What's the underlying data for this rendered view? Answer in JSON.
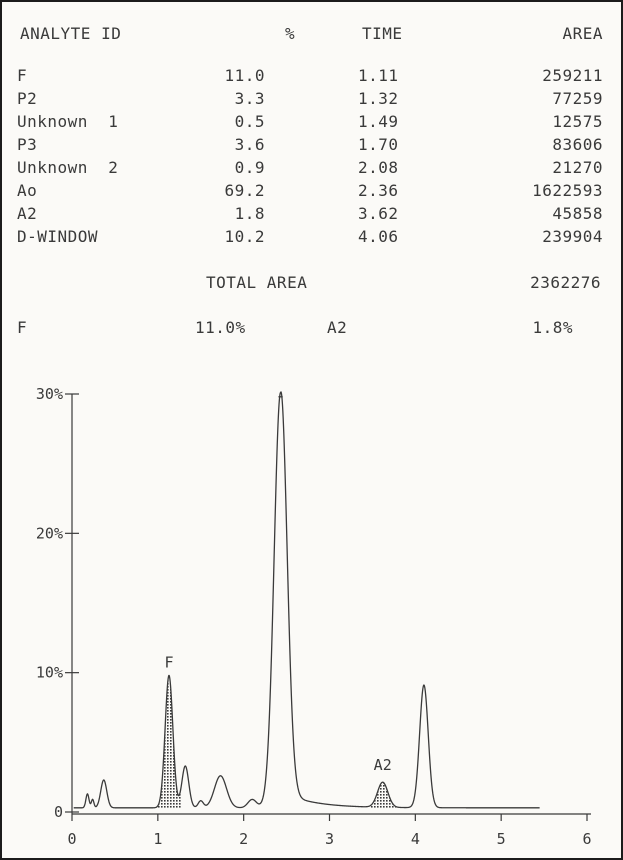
{
  "table": {
    "headers": {
      "analyte": "ANALYTE ID",
      "percent": "%",
      "time": "TIME",
      "area": "AREA"
    },
    "rows": [
      {
        "id": "F",
        "percent": "11.0",
        "time": "1.11",
        "area": "259211"
      },
      {
        "id": "P2",
        "percent": "3.3",
        "time": "1.32",
        "area": "77259"
      },
      {
        "id": "Unknown  1",
        "percent": "0.5",
        "time": "1.49",
        "area": "12575"
      },
      {
        "id": "P3",
        "percent": "3.6",
        "time": "1.70",
        "area": "83606"
      },
      {
        "id": "Unknown  2",
        "percent": "0.9",
        "time": "2.08",
        "area": "21270"
      },
      {
        "id": "Ao",
        "percent": "69.2",
        "time": "2.36",
        "area": "1622593"
      },
      {
        "id": "A2",
        "percent": "1.8",
        "time": "3.62",
        "area": "45858"
      },
      {
        "id": "D-WINDOW",
        "percent": "10.2",
        "time": "4.06",
        "area": "239904"
      }
    ]
  },
  "total": {
    "label": "TOTAL AREA",
    "value": "2362276"
  },
  "summary": {
    "f_label": "F",
    "f_value": "11.0%",
    "a2_label": "A2",
    "a2_value": "1.8%"
  },
  "colors": {
    "ink": "#3a3a3a",
    "paper": "#fbfaf7"
  },
  "chart_data": {
    "type": "line",
    "xlim": [
      0,
      6
    ],
    "ylim": [
      0,
      30
    ],
    "x_ticks": [
      "0",
      "1",
      "2",
      "3",
      "4",
      "5",
      "6"
    ],
    "y_ticks": [
      {
        "value": 0,
        "label": "0"
      },
      {
        "value": 10,
        "label": "10%"
      },
      {
        "value": 20,
        "label": "20%"
      },
      {
        "value": 30,
        "label": "30%"
      }
    ],
    "baseline": 0.3,
    "x_start": 0.02,
    "x_end": 5.45,
    "peaks": [
      {
        "x": 0.18,
        "height": 1.0,
        "width": 0.018
      },
      {
        "x": 0.24,
        "height": 0.6,
        "width": 0.015
      },
      {
        "x": 0.37,
        "height": 2.0,
        "width": 0.035
      },
      {
        "x": 1.13,
        "height": 9.5,
        "width": 0.045
      },
      {
        "x": 1.32,
        "height": 3.0,
        "width": 0.04
      },
      {
        "x": 1.5,
        "height": 0.5,
        "width": 0.03
      },
      {
        "x": 1.73,
        "height": 2.3,
        "width": 0.07
      },
      {
        "x": 2.1,
        "height": 0.6,
        "width": 0.05
      },
      {
        "x": 2.43,
        "height": 29.8,
        "width": 0.075
      },
      {
        "x": 3.62,
        "height": 1.8,
        "width": 0.06
      },
      {
        "x": 4.1,
        "height": 8.8,
        "width": 0.05
      }
    ],
    "shaded_peaks": [
      {
        "label": "F",
        "x_from": 0.97,
        "x_to": 1.28
      },
      {
        "label": "A2",
        "x_from": 3.48,
        "x_to": 3.78
      }
    ],
    "annotations": [
      {
        "text": "F",
        "x": 1.13
      },
      {
        "text": "A2",
        "x": 3.62
      }
    ]
  }
}
